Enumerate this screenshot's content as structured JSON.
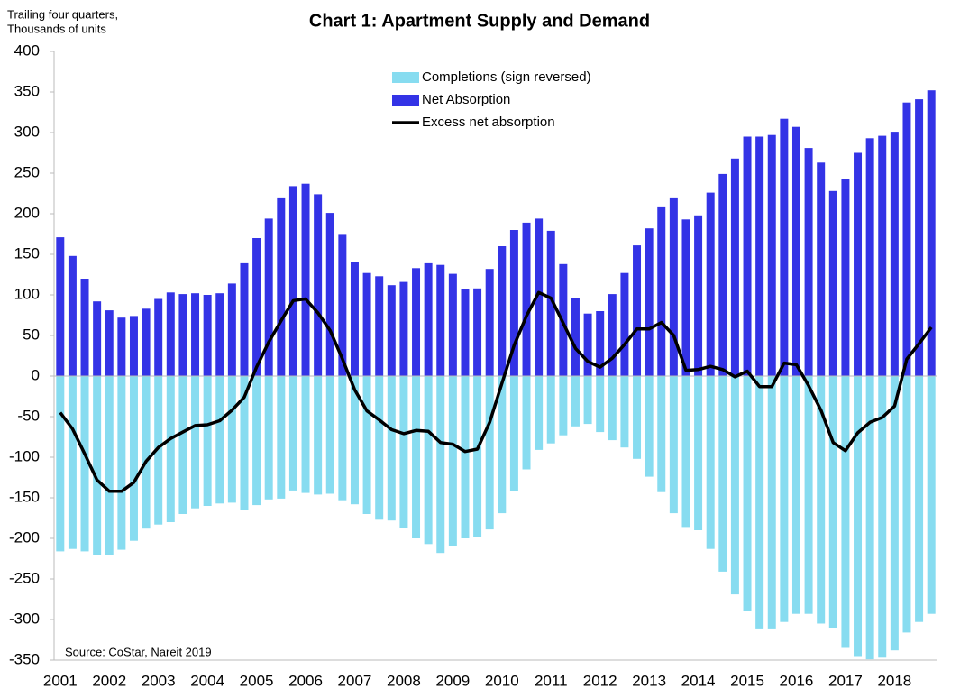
{
  "chart_data": {
    "type": "bar",
    "title": "Chart 1: Apartment Supply and Demand",
    "y_label_lines": [
      "Trailing four quarters,",
      "Thousands of units"
    ],
    "source": "Source: CoStar, Nareit 2019",
    "categories": [
      "2001",
      null,
      null,
      null,
      "2002",
      null,
      null,
      null,
      "2003",
      null,
      null,
      null,
      "2004",
      null,
      null,
      null,
      "2005",
      null,
      null,
      null,
      "2006",
      null,
      null,
      null,
      "2007",
      null,
      null,
      null,
      "2008",
      null,
      null,
      null,
      "2009",
      null,
      null,
      null,
      "2010",
      null,
      null,
      null,
      "2011",
      null,
      null,
      null,
      "2012",
      null,
      null,
      null,
      "2013",
      null,
      null,
      null,
      "2014",
      null,
      null,
      null,
      "2015",
      null,
      null,
      null,
      "2016",
      null,
      null,
      null,
      "2017",
      null,
      null,
      null,
      "2018",
      null,
      null,
      null
    ],
    "series": [
      {
        "name": "Completions (sign reversed)",
        "type": "bar",
        "color": "#87dcf0",
        "values": [
          -216,
          -213,
          -216,
          -220,
          -220,
          -214,
          -203,
          -188,
          -183,
          -180,
          -170,
          -163,
          -160,
          -157,
          -156,
          -165,
          -159,
          -152,
          -151,
          -141,
          -144,
          -146,
          -145,
          -153,
          -158,
          -170,
          -177,
          -178,
          -187,
          -200,
          -207,
          -218,
          -210,
          -200,
          -198,
          -189,
          -169,
          -142,
          -115,
          -91,
          -83,
          -73,
          -62,
          -59,
          -69,
          -79,
          -88,
          -102,
          -124,
          -143,
          -169,
          -186,
          -190,
          -213,
          -241,
          -269,
          -289,
          -311,
          -311,
          -303,
          -293,
          -293,
          -305,
          -310,
          -335,
          -345,
          -349,
          -347,
          -338,
          -316,
          -303,
          -293
        ]
      },
      {
        "name": "Net Absorption",
        "type": "bar",
        "color": "#3333e6",
        "values": [
          171,
          148,
          120,
          92,
          81,
          72,
          74,
          83,
          95,
          103,
          101,
          102,
          100,
          102,
          114,
          139,
          170,
          194,
          219,
          234,
          237,
          224,
          201,
          174,
          141,
          127,
          123,
          112,
          116,
          133,
          139,
          137,
          126,
          107,
          108,
          132,
          160,
          180,
          189,
          194,
          179,
          138,
          96,
          77,
          80,
          101,
          127,
          161,
          182,
          209,
          219,
          193,
          198,
          226,
          249,
          268,
          295,
          295,
          297,
          317,
          307,
          281,
          263,
          228,
          243,
          275,
          293,
          296,
          301,
          337,
          341,
          352
        ]
      },
      {
        "name": "Excess net absorption",
        "type": "line",
        "color": "#000000",
        "values": [
          -45,
          -65,
          -96,
          -128,
          -142,
          -142,
          -131,
          -105,
          -88,
          -77,
          -69,
          -61,
          -60,
          -55,
          -42,
          -26,
          11,
          42,
          68,
          93,
          95,
          78,
          56,
          21,
          -17,
          -43,
          -54,
          -66,
          -71,
          -67,
          -68,
          -82,
          -84,
          -93,
          -90,
          -57,
          -9,
          38,
          74,
          103,
          96,
          65,
          34,
          18,
          11,
          22,
          39,
          58,
          58,
          66,
          50,
          7,
          8,
          12,
          8,
          -1,
          6,
          -13,
          -13,
          16,
          14,
          -12,
          -42,
          -82,
          -92,
          -70,
          -57,
          -51,
          -37,
          21,
          40,
          60
        ]
      }
    ],
    "ylim": [
      -350,
      400
    ],
    "yticks": [
      -350,
      -300,
      -250,
      -200,
      -150,
      -100,
      -50,
      0,
      50,
      100,
      150,
      200,
      250,
      300,
      350,
      400
    ],
    "grid": false
  }
}
